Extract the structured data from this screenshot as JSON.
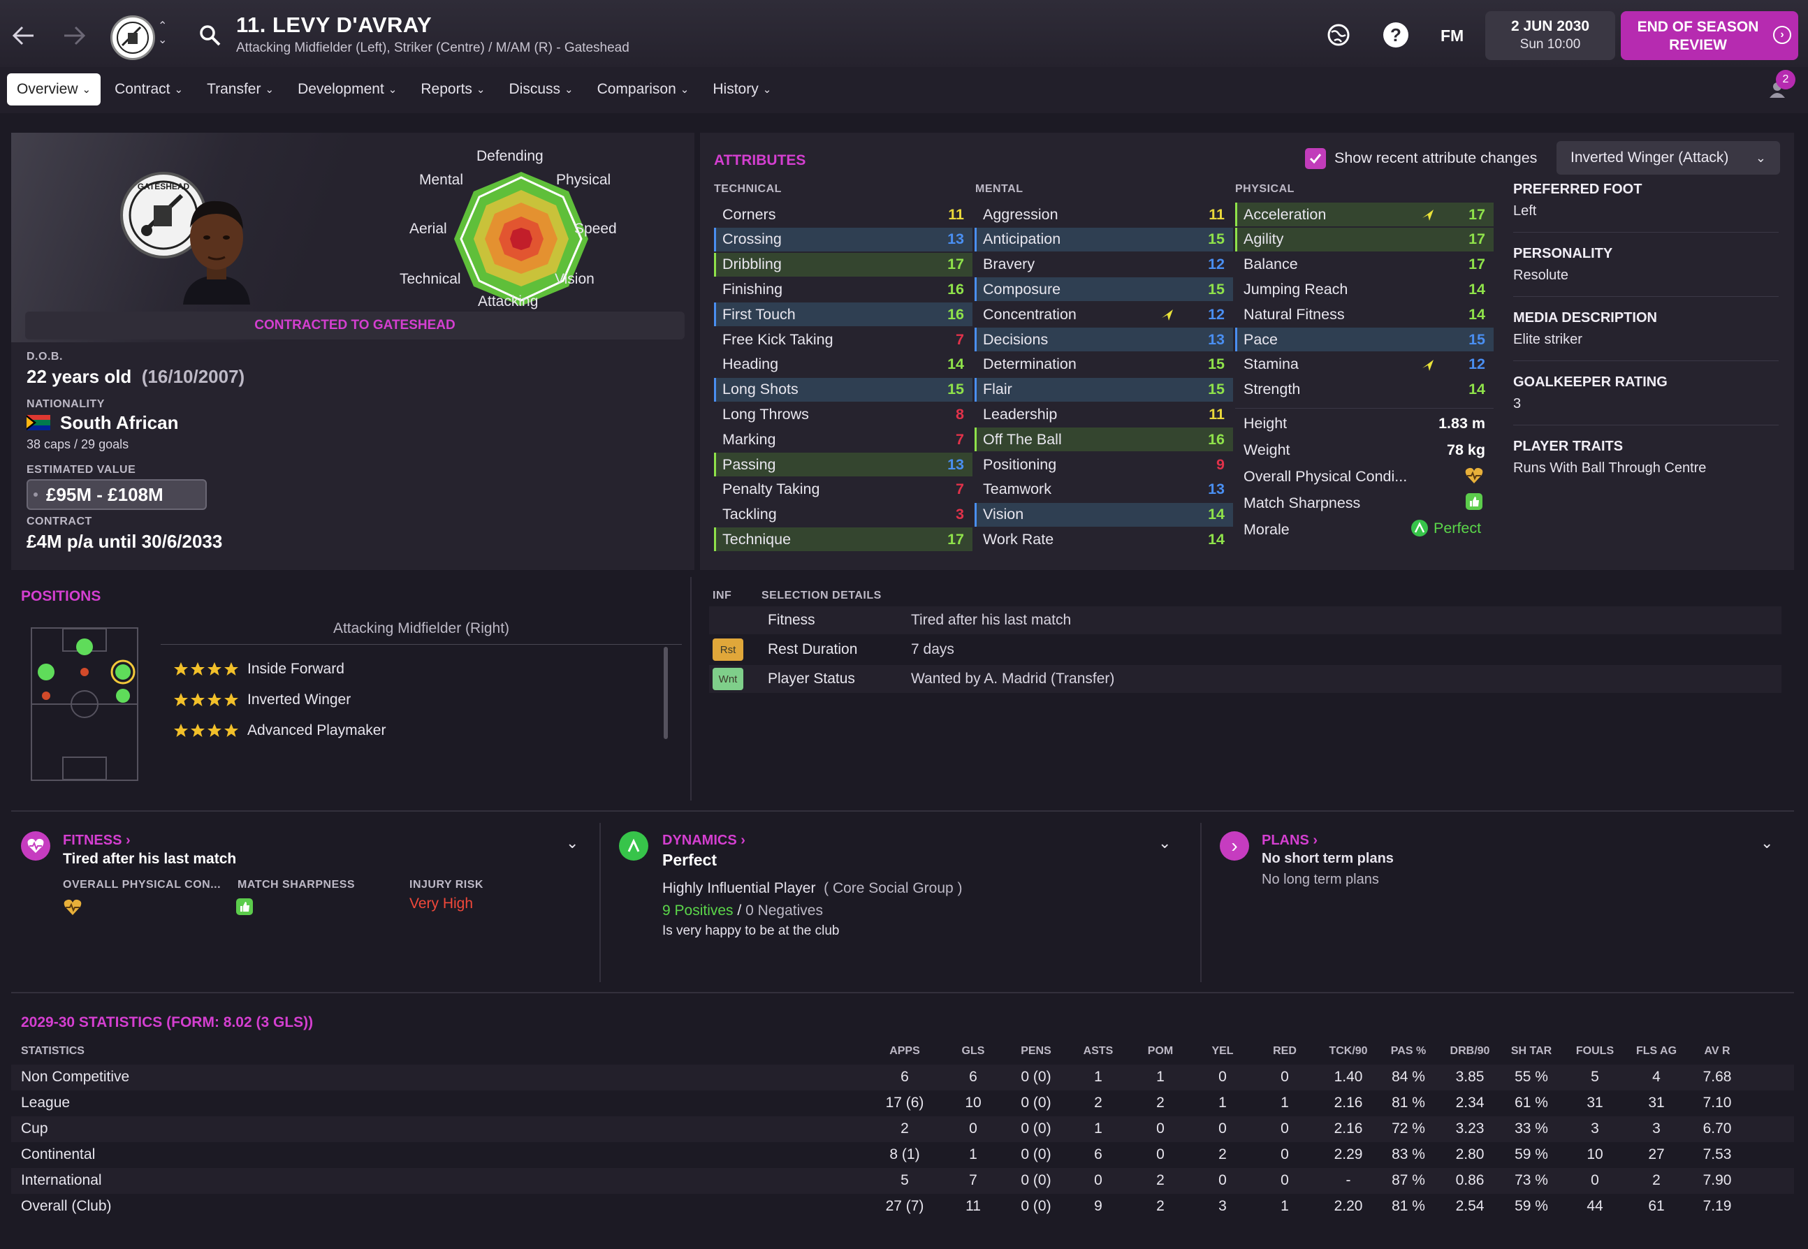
{
  "header": {
    "player_title": "11. LEVY D'AVRAY",
    "subtitle": "Attacking Midfielder (Left), Striker (Centre) / M/AM (R) - Gateshead",
    "date": "2 JUN 2030",
    "time": "Sun 10:00",
    "fm_label": "FM",
    "continue_label": "END OF SEASON REVIEW",
    "notification_count": "2"
  },
  "tabs": [
    {
      "label": "Overview"
    },
    {
      "label": "Contract"
    },
    {
      "label": "Transfer"
    },
    {
      "label": "Development"
    },
    {
      "label": "Reports"
    },
    {
      "label": "Discuss"
    },
    {
      "label": "Comparison"
    },
    {
      "label": "History"
    }
  ],
  "profile": {
    "radar_labels": {
      "top": "Defending",
      "top_right": "Physical",
      "right": "Speed",
      "bottom_right": "Vision",
      "bottom": "Attacking",
      "bottom_left": "Technical",
      "left": "Aerial",
      "top_left": "Mental"
    },
    "club_logo_text": "GATESHEAD",
    "contract_banner": "CONTRACTED TO GATESHEAD",
    "dob_label": "D.O.B.",
    "age": "22 years old",
    "dob": "(16/10/2007)",
    "nationality_label": "NATIONALITY",
    "nationality": "South African",
    "caps": "38 caps / 29 goals",
    "value_label": "ESTIMATED VALUE",
    "value": "£95M - £108M",
    "contract_label": "CONTRACT",
    "contract": "£4M p/a until 30/6/2033"
  },
  "attributes": {
    "title": "ATTRIBUTES",
    "show_changes_label": "Show recent attribute changes",
    "role_select": "Inverted Winger (Attack)",
    "technical_label": "TECHNICAL",
    "mental_label": "MENTAL",
    "physical_label": "PHYSICAL",
    "technical": [
      {
        "name": "Corners",
        "value": "11",
        "hl": "",
        "color": "yellow"
      },
      {
        "name": "Crossing",
        "value": "13",
        "hl": "blue",
        "color": "blue"
      },
      {
        "name": "Dribbling",
        "value": "17",
        "hl": "green",
        "color": "green"
      },
      {
        "name": "Finishing",
        "value": "16",
        "hl": "",
        "color": "green"
      },
      {
        "name": "First Touch",
        "value": "16",
        "hl": "blue",
        "color": "green"
      },
      {
        "name": "Free Kick Taking",
        "value": "7",
        "hl": "",
        "color": "red"
      },
      {
        "name": "Heading",
        "value": "14",
        "hl": "",
        "color": "green"
      },
      {
        "name": "Long Shots",
        "value": "15",
        "hl": "blue",
        "color": "green"
      },
      {
        "name": "Long Throws",
        "value": "8",
        "hl": "",
        "color": "red"
      },
      {
        "name": "Marking",
        "value": "7",
        "hl": "",
        "color": "red"
      },
      {
        "name": "Passing",
        "value": "13",
        "hl": "green",
        "color": "blue"
      },
      {
        "name": "Penalty Taking",
        "value": "7",
        "hl": "",
        "color": "red"
      },
      {
        "name": "Tackling",
        "value": "3",
        "hl": "",
        "color": "red"
      },
      {
        "name": "Technique",
        "value": "17",
        "hl": "green",
        "color": "green"
      }
    ],
    "mental": [
      {
        "name": "Aggression",
        "value": "11",
        "hl": "",
        "color": "yellow",
        "arrow": false
      },
      {
        "name": "Anticipation",
        "value": "15",
        "hl": "blue",
        "color": "green",
        "arrow": false
      },
      {
        "name": "Bravery",
        "value": "12",
        "hl": "",
        "color": "blue",
        "arrow": false
      },
      {
        "name": "Composure",
        "value": "15",
        "hl": "blue",
        "color": "green",
        "arrow": false
      },
      {
        "name": "Concentration",
        "value": "12",
        "hl": "",
        "color": "blue",
        "arrow": true
      },
      {
        "name": "Decisions",
        "value": "13",
        "hl": "blue",
        "color": "blue",
        "arrow": false
      },
      {
        "name": "Determination",
        "value": "15",
        "hl": "",
        "color": "green",
        "arrow": false
      },
      {
        "name": "Flair",
        "value": "15",
        "hl": "blue",
        "color": "green",
        "arrow": false
      },
      {
        "name": "Leadership",
        "value": "11",
        "hl": "",
        "color": "yellow",
        "arrow": false
      },
      {
        "name": "Off The Ball",
        "value": "16",
        "hl": "green",
        "color": "green",
        "arrow": false
      },
      {
        "name": "Positioning",
        "value": "9",
        "hl": "",
        "color": "red",
        "arrow": false
      },
      {
        "name": "Teamwork",
        "value": "13",
        "hl": "",
        "color": "blue",
        "arrow": false
      },
      {
        "name": "Vision",
        "value": "14",
        "hl": "blue",
        "color": "green",
        "arrow": false
      },
      {
        "name": "Work Rate",
        "value": "14",
        "hl": "",
        "color": "green",
        "arrow": false
      }
    ],
    "physical": [
      {
        "name": "Acceleration",
        "value": "17",
        "hl": "green",
        "color": "green",
        "arrow": true
      },
      {
        "name": "Agility",
        "value": "17",
        "hl": "green",
        "color": "green",
        "arrow": false
      },
      {
        "name": "Balance",
        "value": "17",
        "hl": "",
        "color": "green",
        "arrow": false
      },
      {
        "name": "Jumping Reach",
        "value": "14",
        "hl": "",
        "color": "green",
        "arrow": false
      },
      {
        "name": "Natural Fitness",
        "value": "14",
        "hl": "",
        "color": "green",
        "arrow": false
      },
      {
        "name": "Pace",
        "value": "15",
        "hl": "blue",
        "color": "blue",
        "arrow": false
      },
      {
        "name": "Stamina",
        "value": "12",
        "hl": "",
        "color": "blue",
        "arrow": true
      },
      {
        "name": "Strength",
        "value": "14",
        "hl": "",
        "color": "green",
        "arrow": false
      }
    ],
    "height_label": "Height",
    "height": "1.83 m",
    "weight_label": "Weight",
    "weight": "78 kg",
    "condition_label": "Overall Physical Condi...",
    "sharpness_label": "Match Sharpness",
    "morale_label": "Morale",
    "morale": "Perfect"
  },
  "side_info": [
    {
      "label": "PREFERRED FOOT",
      "value": "Left"
    },
    {
      "label": "PERSONALITY",
      "value": "Resolute"
    },
    {
      "label": "MEDIA DESCRIPTION",
      "value": "Elite striker"
    },
    {
      "label": "GOALKEEPER RATING",
      "value": "3"
    },
    {
      "label": "PLAYER TRAITS",
      "value": "Runs With Ball Through Centre"
    }
  ],
  "positions": {
    "title": "POSITIONS",
    "selected": "Attacking Midfielder (Right)",
    "roles": [
      {
        "name": "Inside Forward"
      },
      {
        "name": "Inverted Winger"
      },
      {
        "name": "Advanced Playmaker"
      }
    ],
    "role_rating_stars": 4
  },
  "selection": {
    "inf_label": "INF",
    "details_label": "SELECTION DETAILS",
    "rows": [
      {
        "badge": "",
        "label": "Fitness",
        "value": "Tired after his last match"
      },
      {
        "badge": "Rst",
        "label": "Rest Duration",
        "value": "7 days"
      },
      {
        "badge": "Wnt",
        "label": "Player Status",
        "value": "Wanted by A. Madrid (Transfer)"
      }
    ]
  },
  "fitness": {
    "title": "FITNESS",
    "status": "Tired after his last match",
    "col1": "OVERALL PHYSICAL CON...",
    "col2": "MATCH SHARPNESS",
    "col3": "INJURY RISK",
    "injury_risk": "Very High"
  },
  "dynamics": {
    "title": "DYNAMICS",
    "status": "Perfect",
    "influence": "Highly Influential Player",
    "group": "( Core Social Group )",
    "positives": "9 Positives",
    "slash": "/",
    "negatives": "0 Negatives",
    "happy": "Is very happy to be at the club"
  },
  "plans": {
    "title": "PLANS",
    "short": "No short term plans",
    "long": "No long term plans"
  },
  "stats": {
    "title": "2029-30 STATISTICS (FORM: 8.02 (3 GLS))",
    "headers": [
      "STATISTICS",
      "APPS",
      "GLS",
      "PENS",
      "ASTS",
      "POM",
      "YEL",
      "RED",
      "TCK/90",
      "PAS %",
      "DRB/90",
      "SH TAR",
      "FOULS",
      "FLS AG",
      "AV R"
    ],
    "rows": [
      [
        "Non Competitive",
        "6",
        "6",
        "0 (0)",
        "1",
        "1",
        "0",
        "0",
        "1.40",
        "84 %",
        "3.85",
        "55 %",
        "5",
        "4",
        "7.68"
      ],
      [
        "League",
        "17 (6)",
        "10",
        "0 (0)",
        "2",
        "2",
        "1",
        "1",
        "2.16",
        "81 %",
        "2.34",
        "61 %",
        "31",
        "31",
        "7.10"
      ],
      [
        "Cup",
        "2",
        "0",
        "0 (0)",
        "1",
        "0",
        "0",
        "0",
        "2.16",
        "72 %",
        "3.23",
        "33 %",
        "3",
        "3",
        "6.70"
      ],
      [
        "Continental",
        "8 (1)",
        "1",
        "0 (0)",
        "6",
        "0",
        "2",
        "0",
        "2.29",
        "83 %",
        "2.80",
        "59 %",
        "10",
        "27",
        "7.53"
      ],
      [
        "International",
        "5",
        "7",
        "0 (0)",
        "0",
        "2",
        "0",
        "0",
        "-",
        "87 %",
        "0.86",
        "73 %",
        "0",
        "2",
        "7.90"
      ],
      [
        "Overall (Club)",
        "27 (7)",
        "11",
        "0 (0)",
        "9",
        "2",
        "3",
        "1",
        "2.20",
        "81 %",
        "2.54",
        "59 %",
        "44",
        "61",
        "7.19"
      ]
    ]
  },
  "colors": {
    "accent": "#d43fd0",
    "green": "#8fe24a",
    "yellow": "#e9d83a",
    "blue": "#4a8ff2",
    "red": "#e1324a"
  }
}
